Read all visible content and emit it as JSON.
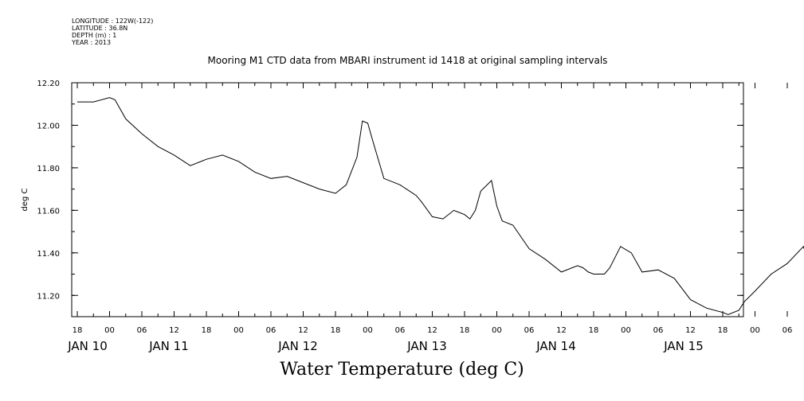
{
  "meta": {
    "longitude": "LONGITUDE : 122W(-122)",
    "latitude": "LATITUDE : 36.8N",
    "depth": "DEPTH (m) : 1",
    "year": "YEAR : 2013"
  },
  "title": "Mooring M1 CTD data from MBARI instrument id 1418 at original sampling intervals",
  "footer_title": "Water Temperature (deg C)",
  "chart_data": {
    "type": "line",
    "title": "Mooring M1 CTD data from MBARI instrument id 1418 at original sampling intervals",
    "xlabel": "",
    "ylabel": "deg C",
    "xlim_hours_label": "hours since JAN 10 00:00",
    "ylim": [
      11.1,
      12.2
    ],
    "yticks": [
      "11.20",
      "11.40",
      "11.60",
      "11.80",
      "12.00",
      "12.20"
    ],
    "xtick_hour_labels": [
      "18",
      "00",
      "06",
      "12",
      "18",
      "00",
      "06",
      "12",
      "18",
      "00",
      "06",
      "12",
      "18",
      "00",
      "06",
      "12",
      "18",
      "00",
      "06",
      "12",
      "18",
      "00",
      "06",
      "12",
      "18"
    ],
    "day_labels": [
      "JAN 10",
      "JAN 11",
      "JAN 12",
      "JAN 13",
      "JAN 14",
      "JAN 15"
    ],
    "grid": false,
    "series": [
      {
        "color": "#000000",
        "x": [
          "2013-01-09 18:00",
          "2013-01-09 21:00",
          "2013-01-10 00:00",
          "2013-01-10 01:00",
          "2013-01-10 03:00",
          "2013-01-10 06:00",
          "2013-01-10 09:00",
          "2013-01-10 12:00",
          "2013-01-10 15:00",
          "2013-01-10 18:00",
          "2013-01-10 21:00",
          "2013-01-11 00:00",
          "2013-01-11 03:00",
          "2013-01-11 06:00",
          "2013-01-11 09:00",
          "2013-01-11 12:00",
          "2013-01-11 15:00",
          "2013-01-11 18:00",
          "2013-01-11 20:00",
          "2013-01-11 22:00",
          "2013-01-11 23:00",
          "2013-01-12 00:00",
          "2013-01-12 01:00",
          "2013-01-12 03:00",
          "2013-01-12 06:00",
          "2013-01-12 09:00",
          "2013-01-12 10:00",
          "2013-01-12 12:00",
          "2013-01-12 14:00",
          "2013-01-12 16:00",
          "2013-01-12 17:00",
          "2013-01-12 18:00",
          "2013-01-12 19:00",
          "2013-01-12 20:00",
          "2013-01-12 21:00",
          "2013-01-12 23:00",
          "2013-01-13 00:00",
          "2013-01-13 01:00",
          "2013-01-13 03:00",
          "2013-01-13 06:00",
          "2013-01-13 09:00",
          "2013-01-13 12:00",
          "2013-01-13 15:00",
          "2013-01-13 16:00",
          "2013-01-13 17:00",
          "2013-01-13 18:00",
          "2013-01-13 19:00",
          "2013-01-13 20:00",
          "2013-01-13 21:00",
          "2013-01-13 23:00",
          "2013-01-14 01:00",
          "2013-01-14 03:00",
          "2013-01-14 06:00",
          "2013-01-14 09:00",
          "2013-01-14 12:00",
          "2013-01-14 15:00",
          "2013-01-14 18:00",
          "2013-01-14 19:00",
          "2013-01-14 21:00",
          "2013-01-14 22:00",
          "2013-01-15 00:00",
          "2013-01-15 03:00",
          "2013-01-15 06:00",
          "2013-01-15 09:00",
          "2013-01-15 12:00",
          "2013-01-15 14:00",
          "2013-01-15 15:00",
          "2013-01-15 18:00",
          "2013-01-15 21:00",
          "2013-01-15 23:00"
        ],
        "values": [
          12.11,
          12.11,
          12.13,
          12.12,
          12.03,
          11.96,
          11.9,
          11.86,
          11.81,
          11.84,
          11.86,
          11.83,
          11.78,
          11.75,
          11.76,
          11.73,
          11.7,
          11.68,
          11.72,
          11.85,
          12.02,
          12.01,
          11.92,
          11.75,
          11.72,
          11.67,
          11.64,
          11.57,
          11.56,
          11.6,
          11.59,
          11.58,
          11.56,
          11.6,
          11.69,
          11.74,
          11.62,
          11.55,
          11.53,
          11.42,
          11.37,
          11.31,
          11.34,
          11.33,
          11.31,
          11.3,
          11.3,
          11.3,
          11.33,
          11.43,
          11.4,
          11.31,
          11.32,
          11.28,
          11.18,
          11.14,
          11.12,
          11.11,
          11.13,
          11.17,
          11.22,
          11.3,
          11.35,
          11.43,
          11.19,
          11.14,
          11.12,
          11.15,
          11.28,
          11.44
        ]
      }
    ]
  }
}
